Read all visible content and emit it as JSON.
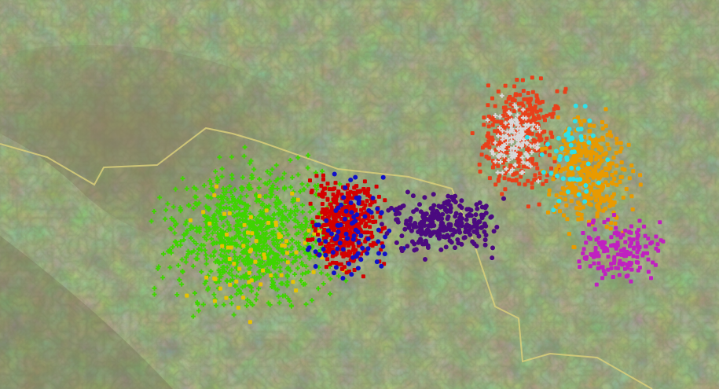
{
  "clusters": [
    {
      "color": "#3fd400"
    },
    {
      "color": "#e6c200"
    },
    {
      "color": "#d40000"
    },
    {
      "color": "#1010c8"
    },
    {
      "color": "#4b0a80"
    },
    {
      "color": "#e8401a"
    },
    {
      "color": "#d8d8d8"
    },
    {
      "color": "#e89a00"
    },
    {
      "color": "#30e0e8"
    },
    {
      "color": "#c020c0"
    }
  ]
}
